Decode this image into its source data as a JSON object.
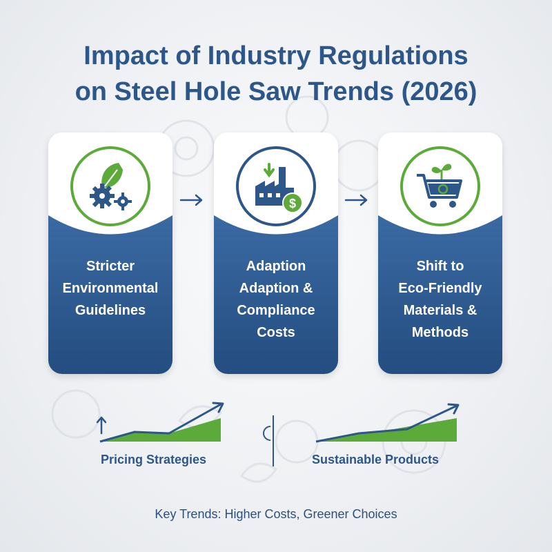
{
  "title_line1": "Impact of Industry Regulations",
  "title_line2": "on Steel Hole Saw Trends (2026)",
  "colors": {
    "navy": "#2d5689",
    "green": "#5cab3a",
    "card_top": "#ffffff",
    "card_bottom": "#2b5a91"
  },
  "cards": [
    {
      "icon": "leaf-gears-icon",
      "lines": [
        "Stricter",
        "Environmental",
        "Guidelines"
      ]
    },
    {
      "icon": "factory-dollar-icon",
      "lines": [
        "Adaption",
        "Adaption &",
        "Compliance",
        "Costs"
      ]
    },
    {
      "icon": "eco-cart-icon",
      "lines": [
        "Shift to",
        "Eco-Friendly",
        "Materials &",
        "Methods"
      ]
    }
  ],
  "trends": [
    {
      "label": "Pricing Strategies",
      "icon": "trend-up-chart-icon"
    },
    {
      "label": "Sustainable Products",
      "icon": "trend-up-chart-icon"
    }
  ],
  "footer": "Key Trends: Higher Costs, Greener Choices"
}
